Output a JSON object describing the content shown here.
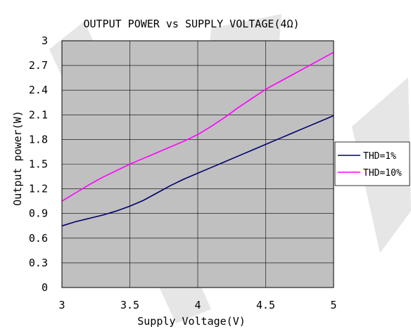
{
  "chart_data": {
    "type": "line",
    "title": "OUTPUT POWER vs SUPPLY VOLTAGE(4Ω)",
    "xlabel": "Supply Voltage(V)",
    "ylabel": "Output power(W)",
    "xlim": [
      3,
      5
    ],
    "ylim": [
      0,
      3
    ],
    "x_ticks": [
      "3",
      "3.5",
      "4",
      "4.5",
      "5"
    ],
    "y_ticks": [
      "0",
      "0.3",
      "0.6",
      "0.9",
      "1.2",
      "1.5",
      "1.8",
      "2.1",
      "2.4",
      "2.7",
      "3"
    ],
    "grid": true,
    "legend_position": "right",
    "plot_background": "#c0c0c0",
    "series": [
      {
        "name": "THD=1%",
        "color": "#00006e",
        "x": [
          3.0,
          3.1,
          3.2,
          3.3,
          3.4,
          3.5,
          3.6,
          3.7,
          3.8,
          3.9,
          4.0,
          4.1,
          4.2,
          4.3,
          4.4,
          4.5,
          4.6,
          4.7,
          4.8,
          4.9,
          5.0
        ],
        "values": [
          0.75,
          0.8,
          0.84,
          0.88,
          0.93,
          0.99,
          1.06,
          1.15,
          1.24,
          1.32,
          1.39,
          1.46,
          1.53,
          1.6,
          1.67,
          1.74,
          1.81,
          1.88,
          1.95,
          2.02,
          2.09
        ]
      },
      {
        "name": "THD=10%",
        "color": "#ff00ff",
        "x": [
          3.0,
          3.1,
          3.2,
          3.3,
          3.4,
          3.5,
          3.6,
          3.7,
          3.8,
          3.9,
          4.0,
          4.1,
          4.2,
          4.3,
          4.4,
          4.5,
          4.6,
          4.7,
          4.8,
          4.9,
          5.0
        ],
        "values": [
          1.05,
          1.15,
          1.25,
          1.34,
          1.42,
          1.5,
          1.57,
          1.64,
          1.71,
          1.78,
          1.86,
          1.96,
          2.07,
          2.19,
          2.3,
          2.41,
          2.5,
          2.59,
          2.68,
          2.77,
          2.86
        ]
      }
    ]
  }
}
